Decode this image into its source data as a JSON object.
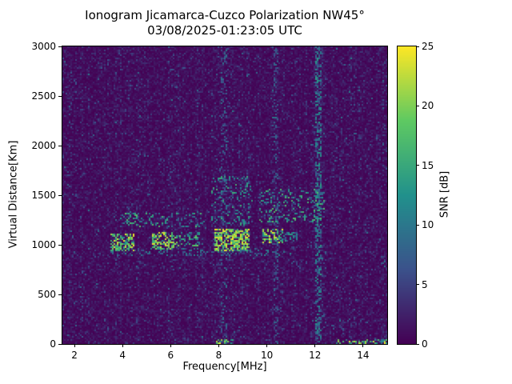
{
  "figure": {
    "title": "Ionogram Jicamarca-Cuzco Polarization NW45°",
    "subtitle": "03/08/2025-01:23:05 UTC"
  },
  "chart_data": {
    "type": "heatmap",
    "title": "Ionogram Jicamarca-Cuzco Polarization NW45°",
    "subtitle": "03/08/2025-01:23:05 UTC",
    "xlabel": "Frequency[MHz]",
    "ylabel": "Virtual Distance[Km]",
    "colorbar_label": "SNR [dB]",
    "xlim": [
      1.5,
      15.0
    ],
    "ylim": [
      0,
      3000
    ],
    "clim": [
      0,
      25
    ],
    "xticks": [
      2,
      4,
      6,
      8,
      10,
      12,
      14
    ],
    "yticks": [
      0,
      500,
      1000,
      1500,
      2000,
      2500,
      3000
    ],
    "colorbar_ticks": [
      0,
      5,
      10,
      15,
      20,
      25
    ],
    "colormap": "viridis",
    "colormap_stops": [
      "#440154",
      "#3b528b",
      "#21918c",
      "#5ec962",
      "#fde725"
    ],
    "grid": false,
    "legend": "none",
    "background_snr_db": [
      0,
      11
    ],
    "noise_scale": 1.3,
    "noise_cap": 11,
    "features": [
      {
        "name": "echo-trace-4MHz-cluster",
        "x": [
          3.5,
          4.5
        ],
        "y": [
          930,
          1120
        ],
        "snr": [
          12,
          25
        ],
        "density": 0.55
      },
      {
        "name": "echo-trace-5.5MHz-cluster",
        "x": [
          5.2,
          6.2
        ],
        "y": [
          950,
          1130
        ],
        "snr": [
          12,
          25
        ],
        "density": 0.5
      },
      {
        "name": "echo-trace-6.5MHz",
        "x": [
          6.2,
          7.2
        ],
        "y": [
          980,
          1130
        ],
        "snr": [
          8,
          20
        ],
        "density": 0.35
      },
      {
        "name": "echo-trace-8-9MHz-bright",
        "x": [
          7.8,
          9.3
        ],
        "y": [
          930,
          1160
        ],
        "snr": [
          14,
          25
        ],
        "density": 0.6
      },
      {
        "name": "echo-trace-10MHz",
        "x": [
          9.8,
          10.7
        ],
        "y": [
          1020,
          1160
        ],
        "snr": [
          12,
          25
        ],
        "density": 0.45
      },
      {
        "name": "echo-trace-11MHz-faint",
        "x": [
          10.7,
          11.3
        ],
        "y": [
          1030,
          1130
        ],
        "snr": [
          6,
          14
        ],
        "density": 0.3
      },
      {
        "name": "multiple-reflection-band",
        "x": [
          3.8,
          7.4
        ],
        "y": [
          1180,
          1330
        ],
        "snr": [
          6,
          18
        ],
        "density": 0.22
      },
      {
        "name": "spread-echo-8-9MHz",
        "x": [
          7.7,
          9.4
        ],
        "y": [
          1200,
          1700
        ],
        "snr": [
          5,
          16
        ],
        "density": 0.18
      },
      {
        "name": "spread-echo-10-12MHz",
        "x": [
          9.7,
          12.4
        ],
        "y": [
          1230,
          1560
        ],
        "snr": [
          6,
          18
        ],
        "density": 0.2
      },
      {
        "name": "underside-faint-band",
        "x": [
          3.5,
          11.0
        ],
        "y": [
          895,
          960
        ],
        "snr": [
          4,
          12
        ],
        "density": 0.22
      },
      {
        "name": "rfi-column-12.1MHz",
        "x": [
          12.0,
          12.25
        ],
        "y": [
          0,
          3000
        ],
        "snr": [
          4,
          14
        ],
        "density": 0.5
      },
      {
        "name": "rfi-column-10.35MHz",
        "x": [
          10.3,
          10.45
        ],
        "y": [
          0,
          3000
        ],
        "snr": [
          3,
          9
        ],
        "density": 0.3
      },
      {
        "name": "rfi-column-8.2MHz",
        "x": [
          8.1,
          8.35
        ],
        "y": [
          0,
          3000
        ],
        "snr": [
          3,
          10
        ],
        "density": 0.25
      },
      {
        "name": "ground-return-8MHz",
        "x": [
          7.9,
          8.6
        ],
        "y": [
          0,
          45
        ],
        "snr": [
          12,
          25
        ],
        "density": 0.5
      },
      {
        "name": "ground-return-13-15MHz",
        "x": [
          12.9,
          15.0
        ],
        "y": [
          0,
          45
        ],
        "snr": [
          8,
          25
        ],
        "density": 0.35
      }
    ]
  }
}
